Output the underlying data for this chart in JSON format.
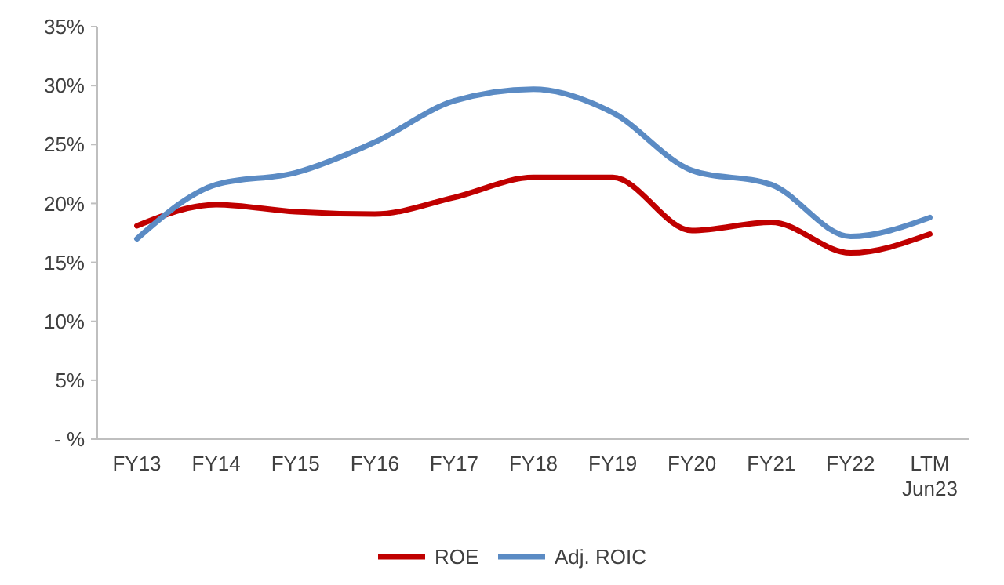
{
  "chart_data": {
    "type": "line",
    "categories": [
      "FY13",
      "FY14",
      "FY15",
      "FY16",
      "FY17",
      "FY18",
      "FY19",
      "FY20",
      "FY21",
      "FY22",
      "LTM\nJun23"
    ],
    "series": [
      {
        "name": "ROE",
        "color": "#c00000",
        "values": [
          18.1,
          19.9,
          19.3,
          19.1,
          20.5,
          22.2,
          22.2,
          17.7,
          18.4,
          15.8,
          17.4
        ]
      },
      {
        "name": "Adj. ROIC",
        "color": "#5b8bc4",
        "values": [
          17.0,
          21.6,
          22.6,
          25.2,
          28.7,
          29.7,
          27.7,
          22.8,
          21.6,
          17.2,
          18.8
        ]
      }
    ],
    "ylim": [
      0,
      35
    ],
    "yticks": [
      {
        "value": 0,
        "label": "- %"
      },
      {
        "value": 5,
        "label": "5%"
      },
      {
        "value": 10,
        "label": "10%"
      },
      {
        "value": 15,
        "label": "15%"
      },
      {
        "value": 20,
        "label": "20%"
      },
      {
        "value": 25,
        "label": "25%"
      },
      {
        "value": 30,
        "label": "30%"
      },
      {
        "value": 35,
        "label": "35%"
      }
    ],
    "legend": "bottom",
    "grid": false,
    "marker": "none",
    "line_style": "solid"
  }
}
